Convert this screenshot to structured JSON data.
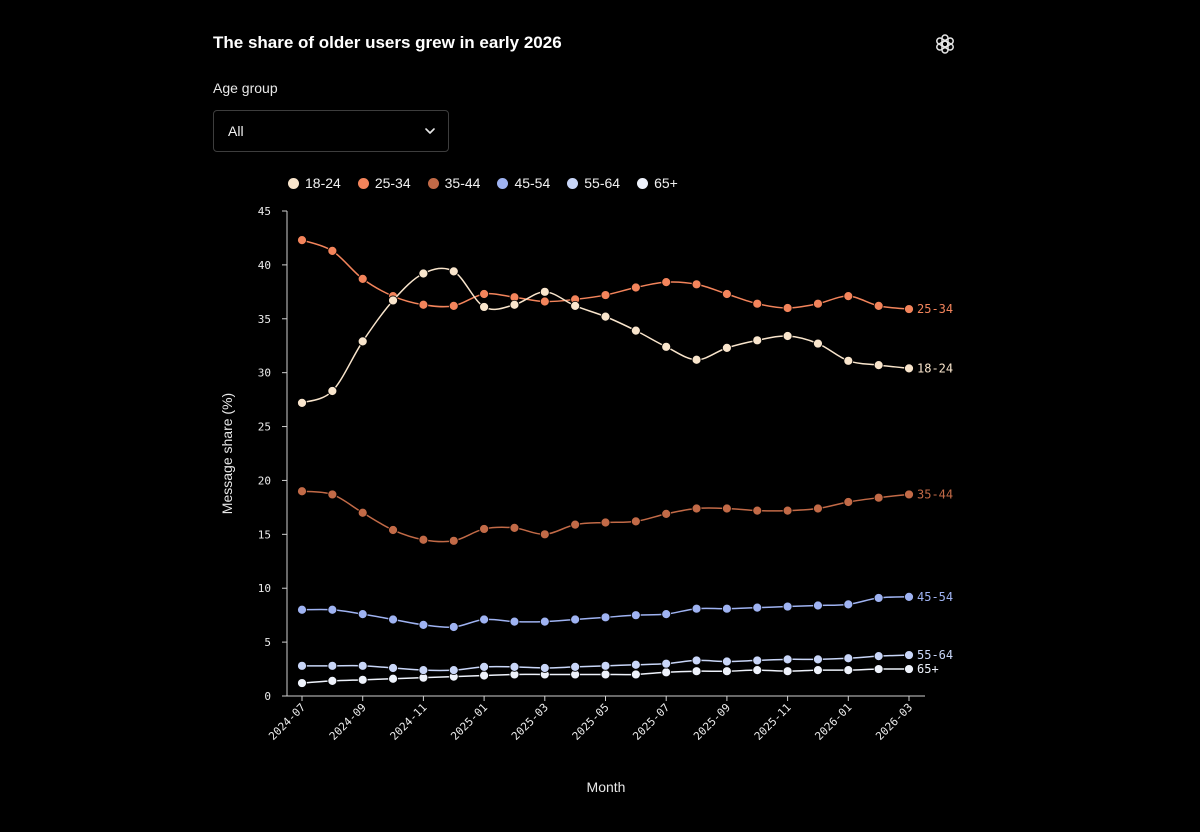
{
  "title": "The share of older users grew in early 2026",
  "filter": {
    "label": "Age group",
    "selected": "All"
  },
  "icons": {
    "logo": "openai-logo-icon",
    "dropdown": "chevron-down-icon"
  },
  "chart_data": {
    "type": "line",
    "xlabel": "Month",
    "ylabel": "Message share (%)",
    "ylim": [
      0,
      45
    ],
    "yticks": [
      0,
      5,
      10,
      15,
      20,
      25,
      30,
      35,
      40,
      45
    ],
    "x": [
      "2024-07",
      "2024-08",
      "2024-09",
      "2024-10",
      "2024-11",
      "2024-12",
      "2025-01",
      "2025-02",
      "2025-03",
      "2025-04",
      "2025-05",
      "2025-06",
      "2025-07",
      "2025-08",
      "2025-09",
      "2025-10",
      "2025-11",
      "2025-12",
      "2026-01",
      "2026-02",
      "2026-03"
    ],
    "xticks": [
      "2024-07",
      "2024-09",
      "2024-11",
      "2025-01",
      "2025-03",
      "2025-05",
      "2025-07",
      "2025-09",
      "2025-11",
      "2026-01",
      "2026-03"
    ],
    "grid": false,
    "legend": "top",
    "series": [
      {
        "name": "18-24",
        "color": "#f9e5cc",
        "values": [
          27.2,
          28.3,
          32.9,
          36.7,
          39.2,
          39.4,
          36.1,
          36.3,
          37.5,
          36.2,
          35.2,
          33.9,
          32.4,
          31.2,
          32.3,
          33.0,
          33.4,
          32.7,
          31.1,
          30.7,
          30.4
        ]
      },
      {
        "name": "25-34",
        "color": "#f3845b",
        "values": [
          42.3,
          41.3,
          38.7,
          37.1,
          36.3,
          36.2,
          37.3,
          37.0,
          36.6,
          36.8,
          37.2,
          37.9,
          38.4,
          38.2,
          37.3,
          36.4,
          36.0,
          36.4,
          37.1,
          36.2,
          35.9
        ]
      },
      {
        "name": "35-44",
        "color": "#c26a47",
        "values": [
          19.0,
          18.7,
          17.0,
          15.4,
          14.5,
          14.4,
          15.5,
          15.6,
          15.0,
          15.9,
          16.1,
          16.2,
          16.9,
          17.4,
          17.4,
          17.2,
          17.2,
          17.4,
          18.0,
          18.4,
          18.7
        ]
      },
      {
        "name": "45-54",
        "color": "#9fb3f2",
        "values": [
          8.0,
          8.0,
          7.6,
          7.1,
          6.6,
          6.4,
          7.1,
          6.9,
          6.9,
          7.1,
          7.3,
          7.5,
          7.6,
          8.1,
          8.1,
          8.2,
          8.3,
          8.4,
          8.5,
          9.1,
          9.2
        ]
      },
      {
        "name": "55-64",
        "color": "#c9d6f8",
        "values": [
          2.8,
          2.8,
          2.8,
          2.6,
          2.4,
          2.4,
          2.7,
          2.7,
          2.6,
          2.7,
          2.8,
          2.9,
          3.0,
          3.3,
          3.2,
          3.3,
          3.4,
          3.4,
          3.5,
          3.7,
          3.8
        ]
      },
      {
        "name": "65+",
        "color": "#eef2fb",
        "values": [
          1.2,
          1.4,
          1.5,
          1.6,
          1.7,
          1.8,
          1.9,
          2.0,
          2.0,
          2.0,
          2.0,
          2.0,
          2.2,
          2.3,
          2.3,
          2.4,
          2.3,
          2.4,
          2.4,
          2.5,
          2.5
        ]
      }
    ]
  }
}
